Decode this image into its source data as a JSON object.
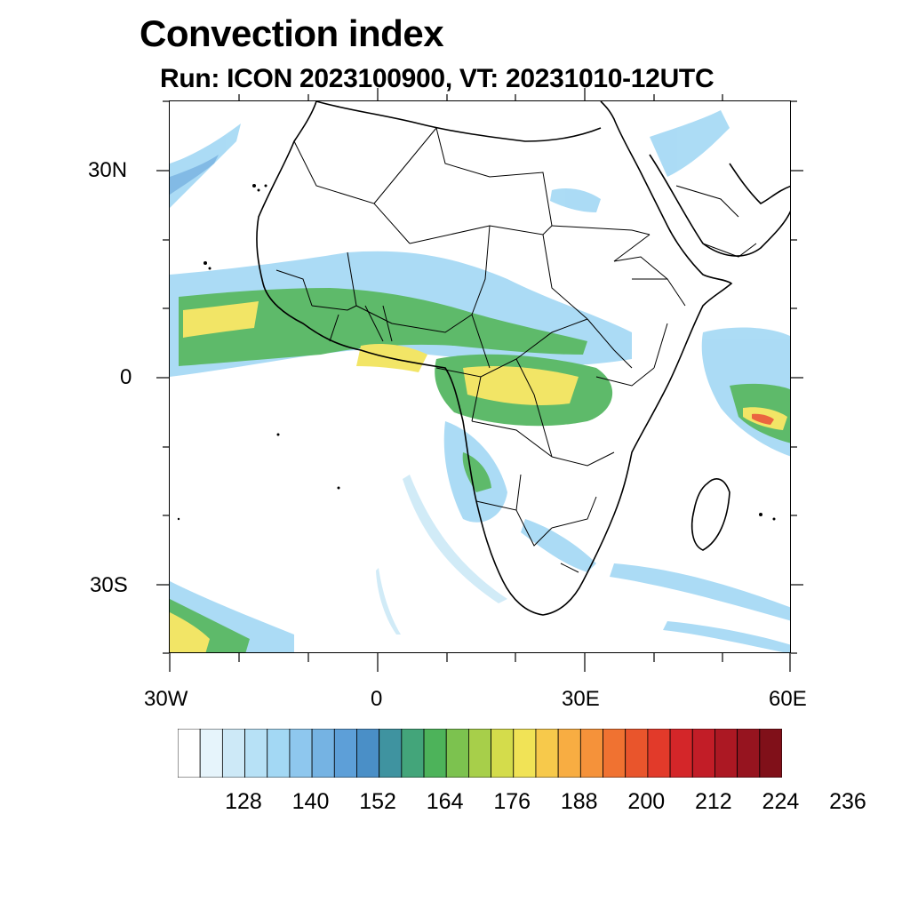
{
  "title": "Convection index",
  "subtitle": "Run: ICON 2023100900,  VT: 20231010-12UTC",
  "axes": {
    "lat_labels": [
      "30N",
      "0",
      "30S"
    ],
    "lon_labels": [
      "30W",
      "0",
      "30E",
      "60E"
    ],
    "lon_range": [
      -30,
      60
    ],
    "lat_range": [
      -40,
      40
    ]
  },
  "colorbar": {
    "labels": [
      "128",
      "140",
      "152",
      "164",
      "176",
      "188",
      "200",
      "212",
      "224",
      "236"
    ],
    "colors": [
      "#ffffff",
      "#e6f4fb",
      "#cde9f7",
      "#b7e1f6",
      "#a3d8f4",
      "#8ec7ee",
      "#75b3e3",
      "#5d9fd8",
      "#4a8fc7",
      "#3f93a0",
      "#43a57a",
      "#4db35a",
      "#7cc24f",
      "#a7cf4a",
      "#d4dc4b",
      "#f1e356",
      "#f7c94b",
      "#f8ad42",
      "#f5923a",
      "#f07231",
      "#e9552c",
      "#e23a2a",
      "#d42629",
      "#c21d27",
      "#ac1823",
      "#96141f",
      "#801019"
    ]
  },
  "colors": {
    "border": "#000000",
    "low": "#a3d8f4",
    "mid": "#4db35a",
    "high": "#f1e356",
    "peak": "#e9552c"
  }
}
